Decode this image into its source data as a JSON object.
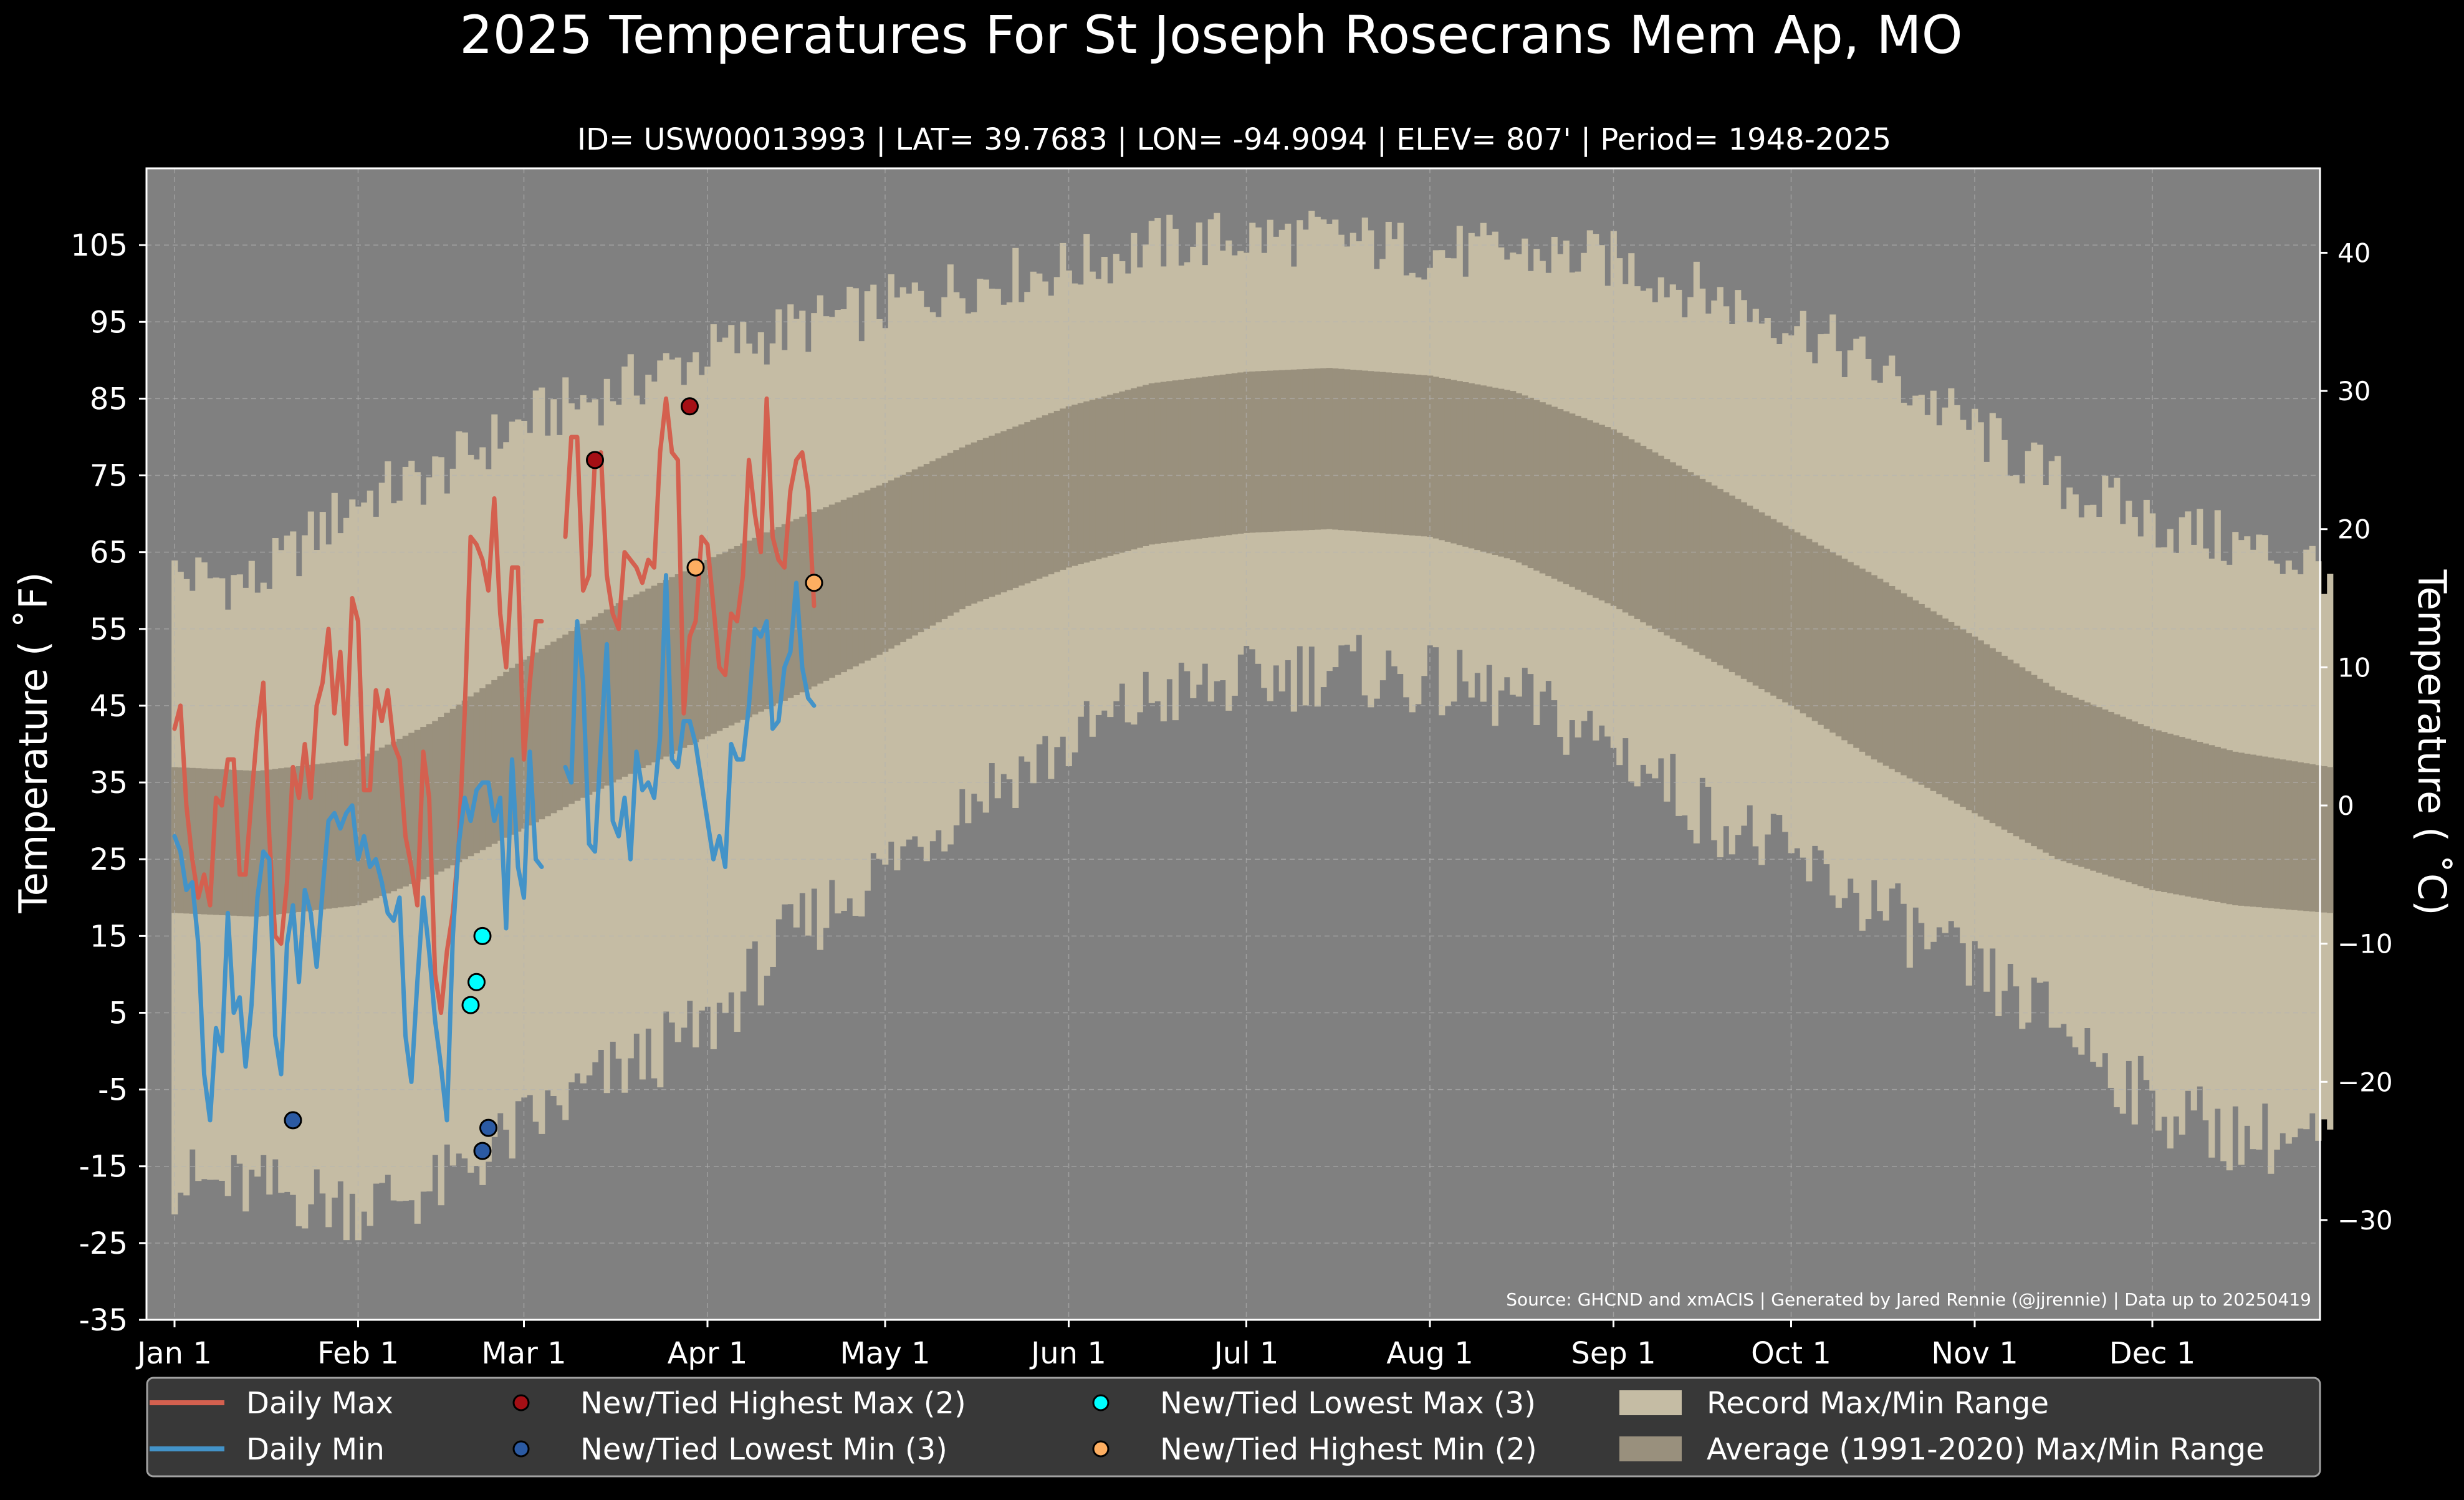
{
  "chart_data": {
    "type": "line",
    "title": "2025 Temperatures For St Joseph Rosecrans Mem Ap, MO",
    "subtitle": "ID= USW00013993 | LAT= 39.7683 | LON= -94.9094 | ELEV= 807' | Period= 1948-2025",
    "ylabel": "Temperature ($^\\circ$F)",
    "ylabel_display": "Temperature ( ˚F)",
    "y2label_display": "Temperature ( ˚C)",
    "source": "Source: GHCND and xmACIS | Generated by Jared Rennie (@jjrennie) | Data up to 20250419",
    "ylim": [
      -35,
      115
    ],
    "y_ticks": [
      "-35",
      "-25",
      "-15",
      "-5",
      "5",
      "15",
      "25",
      "35",
      "45",
      "55",
      "65",
      "75",
      "85",
      "95",
      "105"
    ],
    "y2_ticks": [
      "−30",
      "−20",
      "−10",
      "0",
      "10",
      "20",
      "30",
      "40"
    ],
    "x_ticks": [
      "Jan 1",
      "Feb 1",
      "Mar 1",
      "Apr 1",
      "May 1",
      "Jun 1",
      "Jul 1",
      "Aug 1",
      "Sep 1",
      "Oct 1",
      "Nov 1",
      "Dec 1"
    ],
    "grid": true,
    "legend_position": "bottom",
    "colors": {
      "background": "#000000",
      "plot_bg": "#808080",
      "record_range": "#c5bca4",
      "normal_range": "#99907d",
      "daily_max": "#d4604f",
      "daily_min": "#4393c8",
      "new_high_max": "#a50f15",
      "new_low_min": "#2b5aa3",
      "new_low_max": "#00ffff",
      "new_high_min": "#fdae61",
      "legend_bg": "#3c3c3c"
    },
    "record_max_anchors": [
      [
        1,
        62
      ],
      [
        15,
        61
      ],
      [
        32,
        72
      ],
      [
        45,
        75
      ],
      [
        60,
        82
      ],
      [
        75,
        86
      ],
      [
        91,
        91
      ],
      [
        105,
        94
      ],
      [
        121,
        97
      ],
      [
        135,
        100
      ],
      [
        152,
        102
      ],
      [
        166,
        105
      ],
      [
        182,
        106
      ],
      [
        196,
        106
      ],
      [
        213,
        104
      ],
      [
        227,
        104
      ],
      [
        244,
        103
      ],
      [
        258,
        99
      ],
      [
        274,
        95
      ],
      [
        288,
        89
      ],
      [
        305,
        81
      ],
      [
        319,
        74
      ],
      [
        335,
        69
      ],
      [
        349,
        66
      ],
      [
        365,
        63
      ]
    ],
    "record_min_anchors": [
      [
        1,
        -17
      ],
      [
        15,
        -18
      ],
      [
        32,
        -20
      ],
      [
        45,
        -18
      ],
      [
        60,
        -10
      ],
      [
        75,
        -3
      ],
      [
        91,
        3
      ],
      [
        105,
        15
      ],
      [
        121,
        24
      ],
      [
        135,
        33
      ],
      [
        152,
        40
      ],
      [
        166,
        46
      ],
      [
        182,
        48
      ],
      [
        196,
        50
      ],
      [
        213,
        48
      ],
      [
        227,
        46
      ],
      [
        244,
        40
      ],
      [
        258,
        32
      ],
      [
        274,
        25
      ],
      [
        288,
        19
      ],
      [
        305,
        10
      ],
      [
        319,
        4
      ],
      [
        335,
        -7
      ],
      [
        349,
        -11
      ],
      [
        365,
        -12
      ]
    ],
    "normal_max_anchors": [
      [
        1,
        37
      ],
      [
        15,
        36.5
      ],
      [
        32,
        38
      ],
      [
        45,
        43
      ],
      [
        60,
        51
      ],
      [
        75,
        58
      ],
      [
        91,
        64
      ],
      [
        105,
        69
      ],
      [
        121,
        74
      ],
      [
        135,
        79
      ],
      [
        152,
        84
      ],
      [
        166,
        87
      ],
      [
        182,
        88.5
      ],
      [
        196,
        89
      ],
      [
        213,
        88
      ],
      [
        227,
        86
      ],
      [
        244,
        81
      ],
      [
        258,
        75
      ],
      [
        274,
        68
      ],
      [
        288,
        62
      ],
      [
        305,
        54
      ],
      [
        319,
        47
      ],
      [
        335,
        42
      ],
      [
        349,
        39
      ],
      [
        365,
        37
      ]
    ],
    "normal_min_anchors": [
      [
        1,
        18
      ],
      [
        15,
        17.5
      ],
      [
        32,
        19
      ],
      [
        45,
        23
      ],
      [
        60,
        29
      ],
      [
        75,
        35
      ],
      [
        91,
        41
      ],
      [
        105,
        46
      ],
      [
        121,
        52
      ],
      [
        135,
        58
      ],
      [
        152,
        63
      ],
      [
        166,
        66
      ],
      [
        182,
        67.5
      ],
      [
        196,
        68
      ],
      [
        213,
        67
      ],
      [
        227,
        64
      ],
      [
        244,
        58
      ],
      [
        258,
        52
      ],
      [
        274,
        45
      ],
      [
        288,
        38
      ],
      [
        305,
        31
      ],
      [
        319,
        25
      ],
      [
        335,
        21
      ],
      [
        349,
        19
      ],
      [
        365,
        18
      ]
    ],
    "series": [
      {
        "name": "Daily Max",
        "x": [
          1,
          2,
          3,
          4,
          5,
          6,
          7,
          8,
          9,
          10,
          11,
          12,
          13,
          14,
          15,
          16,
          17,
          18,
          19,
          20,
          21,
          22,
          23,
          24,
          25,
          26,
          27,
          28,
          29,
          30,
          31,
          32,
          33,
          34,
          35,
          36,
          37,
          38,
          39,
          40,
          41,
          42,
          43,
          44,
          45,
          46,
          47,
          48,
          49,
          50,
          51,
          52,
          53,
          54,
          55,
          56,
          57,
          58,
          59,
          60,
          61,
          62,
          63,
          64,
          65,
          66,
          67,
          68,
          69,
          70,
          71,
          72,
          73,
          74,
          75,
          76,
          77,
          78,
          79,
          80,
          81,
          82,
          83,
          84,
          85,
          86,
          87,
          88,
          89,
          90,
          91,
          92,
          93,
          94,
          95,
          96,
          97,
          98,
          99,
          100,
          101,
          102,
          103,
          104,
          105,
          106,
          107,
          108,
          109
        ],
        "values": [
          42,
          45,
          32,
          25,
          20,
          23,
          19,
          33,
          32,
          38,
          38,
          23,
          23,
          33,
          42,
          48,
          28,
          15,
          14,
          22,
          37,
          33,
          40,
          33,
          45,
          48,
          55,
          44,
          52,
          40,
          59,
          56,
          34,
          34,
          47,
          43,
          47,
          40,
          38,
          28,
          24,
          19,
          39,
          33,
          10,
          5,
          13,
          18,
          27,
          44,
          67,
          66,
          64,
          60,
          72,
          57,
          50,
          63,
          63,
          38,
          48,
          56,
          56,
          null,
          null,
          null,
          67,
          80,
          80,
          60,
          62,
          77,
          78,
          62,
          57,
          55,
          65,
          64,
          63,
          61,
          64,
          63,
          78,
          85,
          78,
          77,
          44,
          54,
          56,
          67,
          66,
          58,
          50,
          49,
          57,
          56,
          62,
          77,
          70,
          65,
          85,
          67,
          64,
          63,
          73,
          77,
          78,
          73,
          58
        ]
      },
      {
        "name": "Daily Min",
        "x": [
          1,
          2,
          3,
          4,
          5,
          6,
          7,
          8,
          9,
          10,
          11,
          12,
          13,
          14,
          15,
          16,
          17,
          18,
          19,
          20,
          21,
          22,
          23,
          24,
          25,
          26,
          27,
          28,
          29,
          30,
          31,
          32,
          33,
          34,
          35,
          36,
          37,
          38,
          39,
          40,
          41,
          42,
          43,
          44,
          45,
          46,
          47,
          48,
          49,
          50,
          51,
          52,
          53,
          54,
          55,
          56,
          57,
          58,
          59,
          60,
          61,
          62,
          63,
          64,
          65,
          66,
          67,
          68,
          69,
          70,
          71,
          72,
          73,
          74,
          75,
          76,
          77,
          78,
          79,
          80,
          81,
          82,
          83,
          84,
          85,
          86,
          87,
          88,
          89,
          90,
          91,
          92,
          93,
          94,
          95,
          96,
          97,
          98,
          99,
          100,
          101,
          102,
          103,
          104,
          105,
          106,
          107,
          108,
          109
        ],
        "values": [
          28,
          26,
          21,
          22,
          14,
          -3,
          -9,
          3,
          0,
          18,
          5,
          7,
          -2,
          6,
          20,
          26,
          25,
          2,
          -3,
          14,
          19,
          9,
          21,
          18,
          11,
          21,
          30,
          31,
          29,
          31,
          32,
          25,
          28,
          24,
          25,
          22,
          18,
          17,
          20,
          2,
          -4,
          9,
          20,
          13,
          4,
          -2,
          -9,
          15,
          27,
          33,
          30,
          34,
          35,
          35,
          30,
          33,
          16,
          38,
          24,
          20,
          39,
          25,
          24,
          null,
          null,
          null,
          37,
          35,
          56,
          48,
          27,
          26,
          40,
          53,
          30,
          28,
          33,
          25,
          39,
          34,
          35,
          33,
          41,
          62,
          38,
          37,
          43,
          43,
          40,
          35,
          30,
          25,
          28,
          24,
          40,
          38,
          38,
          45,
          55,
          54,
          56,
          42,
          43,
          50,
          52,
          61,
          50,
          46,
          45
        ]
      }
    ],
    "records": [
      {
        "name": "New/Tied Highest Max (2)",
        "points": [
          [
            72,
            77
          ],
          [
            88,
            84
          ]
        ]
      },
      {
        "name": "New/Tied Lowest Min (3)",
        "points": [
          [
            21,
            -9
          ],
          [
            53,
            -13
          ],
          [
            54,
            -10
          ]
        ]
      },
      {
        "name": "New/Tied Lowest Max (3)",
        "points": [
          [
            51,
            6
          ],
          [
            52,
            9
          ],
          [
            53,
            15
          ]
        ]
      },
      {
        "name": "New/Tied Highest Min (2)",
        "points": [
          [
            89,
            63
          ],
          [
            109,
            61
          ]
        ]
      }
    ],
    "legend": [
      {
        "key": "max_line",
        "label": "Daily Max"
      },
      {
        "key": "min_line",
        "label": "Daily Min"
      },
      {
        "key": "new_high_max",
        "label": "New/Tied Highest Max (2)"
      },
      {
        "key": "new_low_min",
        "label": "New/Tied Lowest Min (3)"
      },
      {
        "key": "new_low_max",
        "label": "New/Tied Lowest Max (3)"
      },
      {
        "key": "new_high_min",
        "label": "New/Tied Highest Min (2)"
      },
      {
        "key": "record_range",
        "label": "Record Max/Min Range"
      },
      {
        "key": "normal_range",
        "label": "Average (1991-2020) Max/Min Range"
      }
    ]
  }
}
